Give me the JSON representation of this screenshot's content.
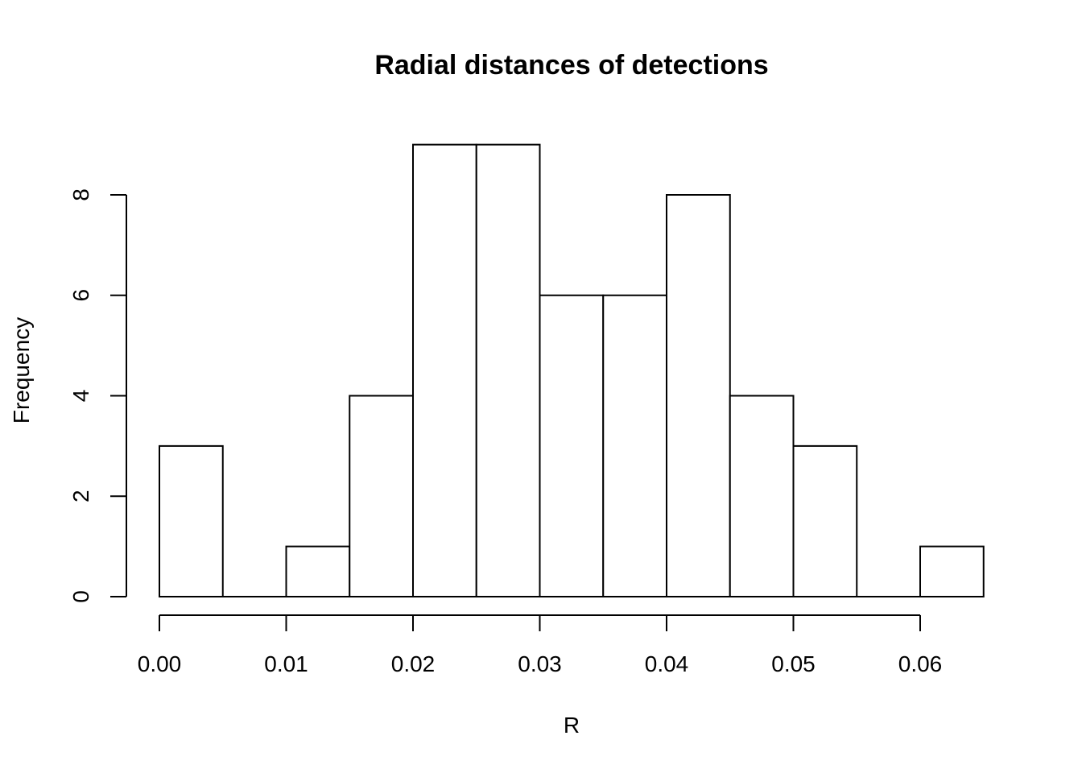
{
  "chart_data": {
    "type": "bar",
    "title": "Radial distances of detections",
    "xlabel": "R",
    "ylabel": "Frequency",
    "bins": [
      {
        "start": 0.0,
        "end": 0.005,
        "count": 3
      },
      {
        "start": 0.005,
        "end": 0.01,
        "count": 0
      },
      {
        "start": 0.01,
        "end": 0.015,
        "count": 1
      },
      {
        "start": 0.015,
        "end": 0.02,
        "count": 4
      },
      {
        "start": 0.02,
        "end": 0.025,
        "count": 9
      },
      {
        "start": 0.025,
        "end": 0.03,
        "count": 9
      },
      {
        "start": 0.03,
        "end": 0.035,
        "count": 6
      },
      {
        "start": 0.035,
        "end": 0.04,
        "count": 6
      },
      {
        "start": 0.04,
        "end": 0.045,
        "count": 8
      },
      {
        "start": 0.045,
        "end": 0.05,
        "count": 4
      },
      {
        "start": 0.05,
        "end": 0.055,
        "count": 3
      },
      {
        "start": 0.055,
        "end": 0.06,
        "count": 0
      },
      {
        "start": 0.06,
        "end": 0.065,
        "count": 1
      }
    ],
    "xlim": [
      0,
      0.065
    ],
    "ylim": [
      0,
      9
    ],
    "x_ticks": [
      0.0,
      0.01,
      0.02,
      0.03,
      0.04,
      0.05,
      0.06
    ],
    "x_tick_labels": [
      "0.00",
      "0.01",
      "0.02",
      "0.03",
      "0.04",
      "0.05",
      "0.06"
    ],
    "y_ticks": [
      0,
      2,
      4,
      6,
      8
    ],
    "y_tick_labels": [
      "0",
      "2",
      "4",
      "6",
      "8"
    ],
    "grid": false,
    "bar_fill": "#ffffff",
    "bar_stroke": "#000000"
  }
}
